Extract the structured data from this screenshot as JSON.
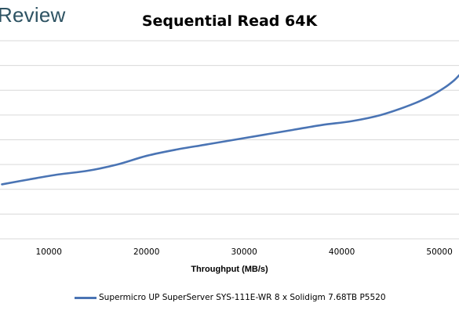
{
  "branding": {
    "logo_text": "Review"
  },
  "chart_data": {
    "type": "line",
    "title": "Sequential Read 64K",
    "xlabel": "Throughput (MB/s)",
    "ylabel": "",
    "xlim": [
      5000,
      52000
    ],
    "x_ticks": [
      10000,
      20000,
      30000,
      40000,
      50000
    ],
    "x_tick_labels": [
      "10000",
      "20000",
      "30000",
      "40000",
      "50000"
    ],
    "ylim": [
      0,
      8
    ],
    "grid": "horizontal",
    "legend_placement": "bottom",
    "series": [
      {
        "name": "Supermicro UP SuperServer SYS-111E-WR 8 x Solidigm 7.68TB P5520",
        "color": "#4a74b4",
        "x": [
          5200,
          8000,
          11000,
          14000,
          17000,
          20000,
          23000,
          26000,
          29000,
          32000,
          35000,
          38000,
          41000,
          44000,
          47000,
          49000,
          50500,
          51500,
          52000
        ],
        "y": [
          2.2,
          2.4,
          2.6,
          2.75,
          3.0,
          3.35,
          3.6,
          3.8,
          4.0,
          4.2,
          4.4,
          4.6,
          4.75,
          5.0,
          5.4,
          5.75,
          6.1,
          6.4,
          6.6
        ]
      }
    ]
  }
}
